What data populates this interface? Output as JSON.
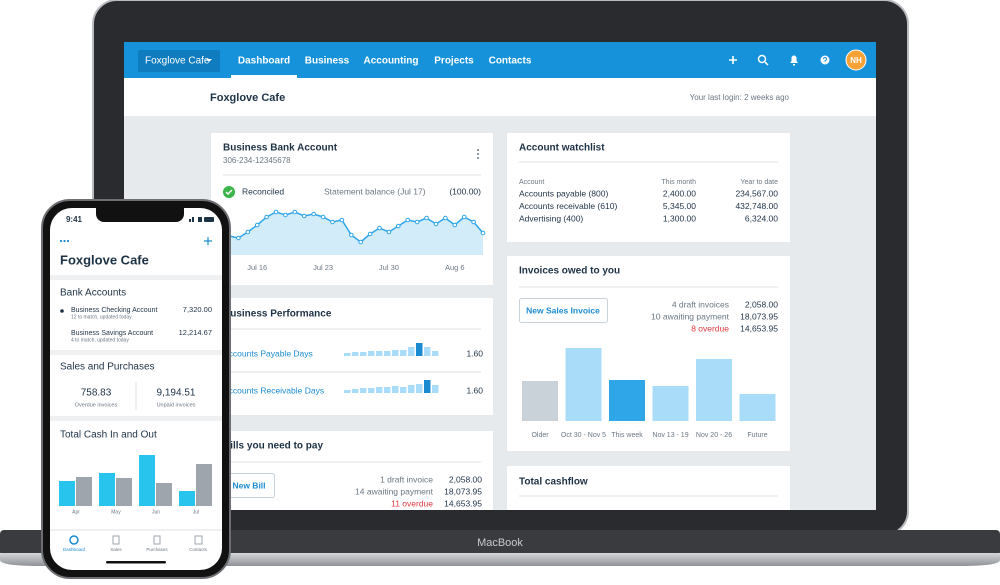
{
  "laptop": {
    "brand": "MacBook",
    "nav": {
      "org": "Foxglove Cafe",
      "tabs": [
        "Dashboard",
        "Business",
        "Accounting",
        "Projects",
        "Contacts"
      ],
      "avatar": "NH"
    },
    "header": {
      "title": "Foxglove Cafe",
      "last_login": "Your last login: 2 weeks ago"
    },
    "bank_account": {
      "title": "Business Bank Account",
      "number": "306-234-12345678",
      "status": "Reconciled",
      "statement_label": "Statement balance (Jul 17)",
      "statement_value": "(100.00)",
      "chart_data": {
        "type": "line",
        "categories": [
          null,
          null,
          null,
          "Jul 16",
          null,
          null,
          null,
          null,
          null,
          null,
          "Jul 23",
          null,
          null,
          null,
          null,
          null,
          null,
          "Jul 30",
          null,
          null,
          null,
          null,
          null,
          null,
          "Aug 6",
          null,
          null,
          null
        ],
        "values": [
          19,
          17,
          23,
          30,
          38,
          43,
          40,
          43,
          39,
          41,
          38,
          33,
          35,
          20,
          13,
          21,
          27,
          23,
          29,
          35,
          33,
          37,
          31,
          37,
          30,
          38,
          33,
          22
        ],
        "color": "#2fa6e7",
        "fill": "#d3ecfa"
      }
    },
    "business_performance": {
      "title": "Business Performance",
      "rows": [
        {
          "label": "Accounts Payable Days",
          "value": "1.60",
          "chart_data": {
            "type": "bar",
            "values": [
              3,
              4,
              4,
              5,
              5,
              5,
              6,
              6,
              9,
              13,
              9,
              5
            ],
            "color": "#a8dcf8",
            "highlight_color": "#1b8bd1",
            "highlight_index": 9
          }
        },
        {
          "label": "Accounts Receivable Days",
          "value": "1.60",
          "chart_data": {
            "type": "bar",
            "values": [
              3,
              4,
              5,
              5,
              6,
              6,
              7,
              6,
              8,
              9,
              13,
              8
            ],
            "color": "#a8dcf8",
            "highlight_color": "#1b8bd1",
            "highlight_index": 10
          }
        }
      ]
    },
    "bills": {
      "title": "Bills you need to pay",
      "button": "New Bill",
      "rows": [
        {
          "label": "1 draft invoice",
          "value": "2,058.00"
        },
        {
          "label": "14 awaiting payment",
          "value": "18,073.95"
        },
        {
          "label": "11 overdue",
          "value": "14,653.95",
          "alert": true
        }
      ]
    },
    "watchlist": {
      "title": "Account watchlist",
      "columns": [
        "Account",
        "This month",
        "Year to date"
      ],
      "rows": [
        [
          "Accounts payable (800)",
          "2,400.00",
          "234,567.00"
        ],
        [
          "Accounts receivable (610)",
          "5,345.00",
          "432,748.00"
        ],
        [
          "Advertising (400)",
          "1,300.00",
          "6,324.00"
        ]
      ]
    },
    "invoices": {
      "title": "Invoices owed to you",
      "button": "New Sales Invoice",
      "rows": [
        {
          "label": "4 draft invoices",
          "value": "2,058.00"
        },
        {
          "label": "10 awaiting payment",
          "value": "18,073.95"
        },
        {
          "label": "8 overdue",
          "value": "14,653.95",
          "alert": true
        }
      ],
      "chart_data": {
        "type": "bar",
        "categories": [
          "Older",
          "Oct 30 - Nov 5",
          "This week",
          "Nov 13 - 19",
          "Nov 20 - 26",
          "Future"
        ],
        "values": [
          40,
          73,
          41,
          35,
          62,
          27
        ],
        "colors": [
          "#c9d1d9",
          "#a8dcf8",
          "#2fa6e7",
          "#a8dcf8",
          "#a8dcf8",
          "#a8dcf8"
        ]
      }
    },
    "cashflow": {
      "title": "Total cashflow"
    }
  },
  "phone": {
    "time": "9:41",
    "title": "Foxglove Cafe",
    "bank_accounts": {
      "title": "Bank Accounts",
      "rows": [
        {
          "name": "Business Checking Account",
          "note": "12 to match, updated today",
          "value": "7,320.00"
        },
        {
          "name": "Business Savings Account",
          "note": "4 to match, updated today",
          "value": "12,214.67"
        }
      ]
    },
    "sales": {
      "title": "Sales and Purchases",
      "items": [
        {
          "value": "758.83",
          "label": "Overdue invoices"
        },
        {
          "value": "9,194.51",
          "label": "Unpaid invoices"
        }
      ]
    },
    "cash": {
      "title": "Total Cash In and Out",
      "chart_data": {
        "type": "bar",
        "categories": [
          "Apr",
          "May",
          "Jun",
          "Jul"
        ],
        "series": [
          {
            "color": "#29c4ee",
            "values": [
              25,
              33,
              51,
              15
            ]
          },
          {
            "color": "#9ea5ac",
            "values": [
              29,
              28,
              23,
              42
            ]
          }
        ]
      }
    },
    "tabs": [
      "Dashboard",
      "Sales",
      "Purchases",
      "Contacts"
    ]
  }
}
